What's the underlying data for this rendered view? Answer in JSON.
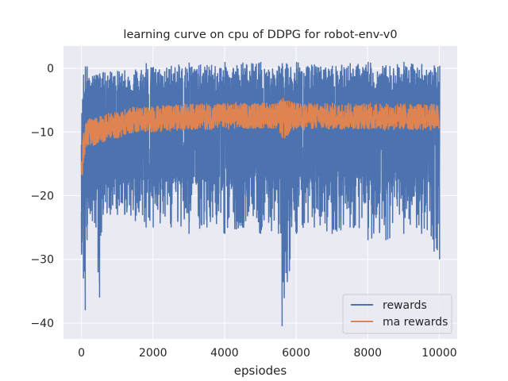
{
  "chart_data": {
    "type": "line",
    "title": "learning curve on cpu of DDPG for robot-env-v0",
    "xlabel": "epsiodes",
    "ylabel": "",
    "xlim": [
      -500,
      10500
    ],
    "ylim": [
      -42.5,
      3.5
    ],
    "x_ticks": [
      0,
      2000,
      4000,
      6000,
      8000,
      10000
    ],
    "y_ticks": [
      0,
      -10,
      -20,
      -30,
      -40
    ],
    "x_tick_labels": [
      "0",
      "2000",
      "4000",
      "6000",
      "8000",
      "10000"
    ],
    "y_tick_labels": [
      "0",
      "−10",
      "−20",
      "−30",
      "−40"
    ],
    "grid": true,
    "background": "#eaeaf2",
    "legend": {
      "position": "lower-right"
    },
    "series": [
      {
        "name": "rewards",
        "color": "#4c72b0",
        "x": [
          0,
          50,
          100,
          150,
          200,
          300,
          400,
          500,
          600,
          800,
          1000,
          1200,
          1500,
          1800,
          2000,
          2500,
          3000,
          3500,
          4000,
          4500,
          5000,
          5500,
          5600,
          6000,
          6500,
          7000,
          7500,
          8000,
          8500,
          9000,
          9500,
          10000
        ],
        "upper": [
          -8,
          -1,
          0.3,
          0.3,
          -1.5,
          -1.2,
          -1,
          -0.8,
          -0.6,
          -0.5,
          -0.4,
          -0.3,
          -0.2,
          0.8,
          0.2,
          0.4,
          0.9,
          0.5,
          1,
          0.9,
          1,
          0.4,
          0.8,
          1,
          0.6,
          0.4,
          0.8,
          1,
          0.5,
          1,
          0.7,
          0.4
        ],
        "lower": [
          -29,
          -33,
          -38,
          -27,
          -22,
          -24,
          -25,
          -36,
          -23,
          -23,
          -23,
          -23,
          -24,
          -25,
          -25,
          -25,
          -26,
          -25,
          -26,
          -25,
          -26,
          -26,
          -40.5,
          -26,
          -25,
          -26,
          -25,
          -27,
          -27,
          -26,
          -26,
          -30
        ],
        "q_high": [
          -12,
          -6,
          -4,
          -3.5,
          -3.5,
          -3.5,
          -3.5,
          -3.5,
          -3.5,
          -3.5,
          -3.5,
          -3.5,
          -3.5,
          -3.5,
          -3.5,
          -3.5,
          -3.5,
          -3.5,
          -3.5,
          -3.5,
          -3.5,
          -3.5,
          -3.5,
          -3.5,
          -3.5,
          -3.5,
          -3.5,
          -3.5,
          -3.5,
          -3.5,
          -3.5,
          -3.5
        ],
        "q_low": [
          -22,
          -20,
          -19,
          -18,
          -18,
          -17.5,
          -17.5,
          -17.5,
          -17,
          -17,
          -17,
          -17,
          -17,
          -17,
          -17,
          -17,
          -17,
          -17,
          -17,
          -17,
          -17,
          -17,
          -17,
          -17,
          -17,
          -17,
          -17,
          -17,
          -17,
          -17,
          -17,
          -17
        ]
      },
      {
        "name": "ma rewards",
        "color": "#dd8452",
        "x": [
          0,
          30,
          60,
          100,
          150,
          200,
          300,
          400,
          500,
          600,
          800,
          1000,
          1200,
          1500,
          2000,
          2500,
          3000,
          3500,
          4000,
          4500,
          5000,
          5500,
          5600,
          6000,
          6500,
          7000,
          7500,
          8000,
          8500,
          9000,
          9500,
          10000
        ],
        "values": [
          -16,
          -14,
          -12.5,
          -11,
          -10.5,
          -10,
          -10,
          -10,
          -9.5,
          -9.5,
          -9,
          -9,
          -8.5,
          -8,
          -8,
          -7.8,
          -7.6,
          -7.6,
          -7.5,
          -7.5,
          -7.4,
          -7.4,
          -8,
          -7.5,
          -7.5,
          -7.6,
          -7.5,
          -7.5,
          -7.6,
          -7.6,
          -7.7,
          -7.6
        ],
        "noise": [
          3,
          3,
          2.5,
          2.3,
          2.3,
          2.3,
          2.2,
          2.2,
          2.2,
          2.2,
          2.1,
          2.1,
          2.1,
          2.1,
          2.1,
          2.1,
          2.1,
          2.1,
          2.1,
          2.1,
          2.1,
          2.1,
          3.5,
          2.1,
          2.1,
          2.1,
          2.1,
          2.1,
          2.1,
          2.1,
          2.1,
          2.1
        ]
      }
    ]
  }
}
